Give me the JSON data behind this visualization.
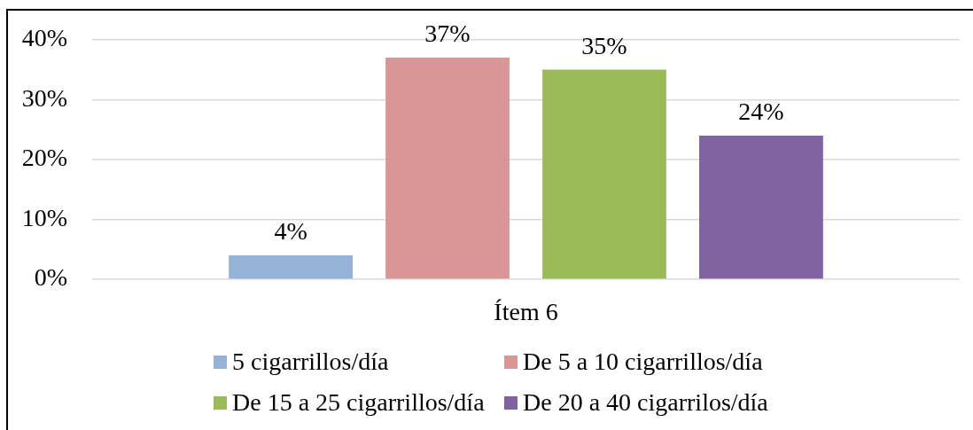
{
  "chart_data": {
    "type": "bar",
    "categories": [
      "Ítem 6"
    ],
    "series": [
      {
        "name": "5 cigarrillos/día",
        "color": "#95b3d7",
        "values": [
          4
        ],
        "value_labels": [
          "4%"
        ]
      },
      {
        "name": "De 5 a 10 cigarrillos/día",
        "color": "#d99694",
        "values": [
          37
        ],
        "value_labels": [
          "37%"
        ]
      },
      {
        "name": "De 15 a 25 cigarrillos/día",
        "color": "#9bbb59",
        "values": [
          35
        ],
        "value_labels": [
          "35%"
        ]
      },
      {
        "name": "De 20 a 40 cigarrilos/día",
        "color": "#8064a2",
        "values": [
          24
        ],
        "value_labels": [
          "24%"
        ]
      }
    ],
    "ylim": [
      0,
      40
    ],
    "yticks": [
      {
        "value": 0,
        "label": "0%"
      },
      {
        "value": 10,
        "label": "10%"
      },
      {
        "value": 20,
        "label": "20%"
      },
      {
        "value": 30,
        "label": "30%"
      },
      {
        "value": 40,
        "label": "40%"
      }
    ],
    "grid": "y",
    "legend": "bottom"
  }
}
